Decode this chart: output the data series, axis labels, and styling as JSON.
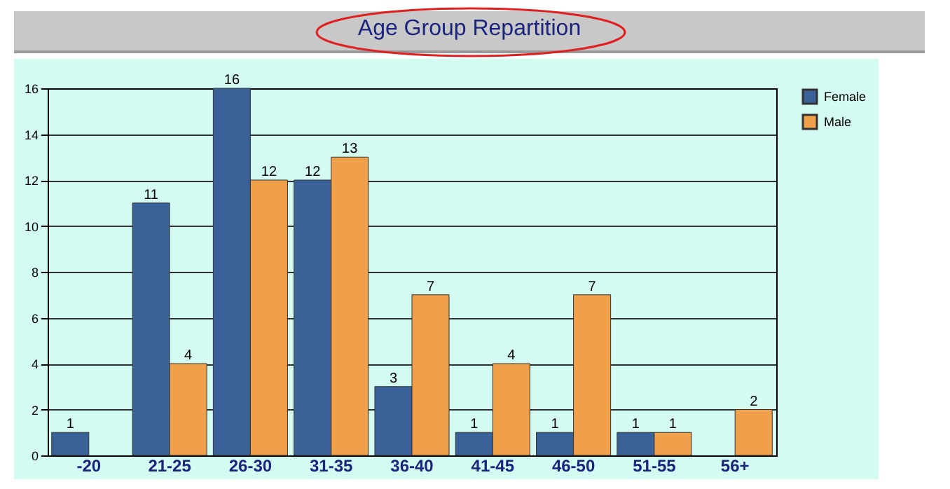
{
  "chart_data": {
    "type": "bar",
    "title": "Age Group Repartition",
    "categories": [
      "-20",
      "21-25",
      "26-30",
      "31-35",
      "36-40",
      "41-45",
      "46-50",
      "51-55",
      "56+"
    ],
    "series": [
      {
        "name": "Female",
        "color": "#3a6299",
        "values": [
          1,
          11,
          16,
          12,
          3,
          1,
          1,
          1,
          null
        ]
      },
      {
        "name": "Male",
        "color": "#f0a04b",
        "values": [
          null,
          4,
          12,
          13,
          7,
          4,
          7,
          1,
          2
        ]
      }
    ],
    "ylim": [
      0,
      16
    ],
    "yticks": [
      0,
      2,
      4,
      6,
      8,
      10,
      12,
      14,
      16
    ],
    "grid": "y",
    "legend": "right",
    "data_labels": true
  }
}
